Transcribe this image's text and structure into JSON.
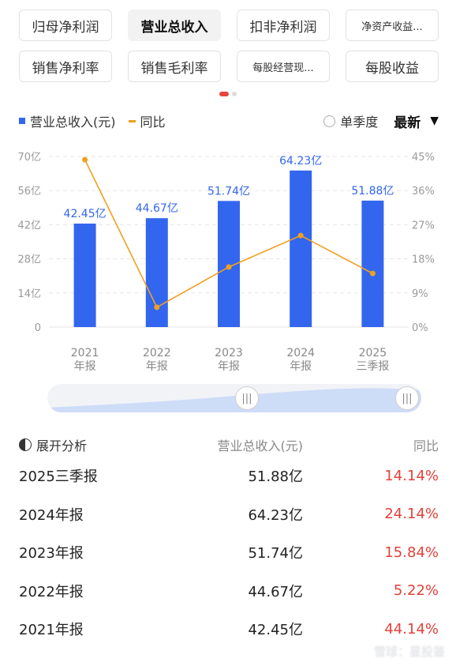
{
  "tabs": [
    [
      "归母净利润",
      "营业总收入",
      "扣非净利润",
      "净资产收益..."
    ],
    [
      "销售净利率",
      "销售毛利率",
      "每股经营现...",
      "每股收益"
    ]
  ],
  "active_tab": "营业总收入",
  "legend": {
    "bar": "营业总收入(元)",
    "line": "同比"
  },
  "controls": {
    "quarter_toggle": "单季度",
    "period": "最新"
  },
  "table": {
    "headers": [
      "展开分析",
      "营业总收入(元)",
      "同比"
    ],
    "rows": [
      {
        "period": "2025三季报",
        "revenue": "51.88亿",
        "yoy": "14.14%"
      },
      {
        "period": "2024年报",
        "revenue": "64.23亿",
        "yoy": "24.14%"
      },
      {
        "period": "2023年报",
        "revenue": "51.74亿",
        "yoy": "15.84%"
      },
      {
        "period": "2022年报",
        "revenue": "44.67亿",
        "yoy": "5.22%"
      },
      {
        "period": "2021年报",
        "revenue": "42.45亿",
        "yoy": "44.14%"
      }
    ]
  },
  "watermark": "雪球：星投鉴",
  "colors": {
    "bar": "#3366ee",
    "line": "#f0a020",
    "positive": "#e5403a",
    "active_dot": "#e8453c"
  },
  "chart_data": {
    "type": "bar",
    "categories": [
      [
        "2021",
        "年报"
      ],
      [
        "2022",
        "年报"
      ],
      [
        "2023",
        "年报"
      ],
      [
        "2024",
        "年报"
      ],
      [
        "2025",
        "三季报"
      ]
    ],
    "series": [
      {
        "name": "营业总收入(元)",
        "type": "bar",
        "axis": "left",
        "values": [
          42.45,
          44.67,
          51.74,
          64.23,
          51.88
        ],
        "labels": [
          "42.45亿",
          "44.67亿",
          "51.74亿",
          "64.23亿",
          "51.88亿"
        ]
      },
      {
        "name": "同比",
        "type": "line",
        "axis": "right",
        "values": [
          44.14,
          5.22,
          15.84,
          24.14,
          14.14
        ]
      }
    ],
    "y_left": {
      "ticks": [
        "0",
        "14亿",
        "28亿",
        "42亿",
        "56亿",
        "70亿"
      ],
      "lim": [
        0,
        70
      ]
    },
    "y_right": {
      "ticks": [
        "0%",
        "9%",
        "18%",
        "27%",
        "36%",
        "45%"
      ],
      "lim": [
        0,
        45
      ]
    },
    "grid": true
  }
}
